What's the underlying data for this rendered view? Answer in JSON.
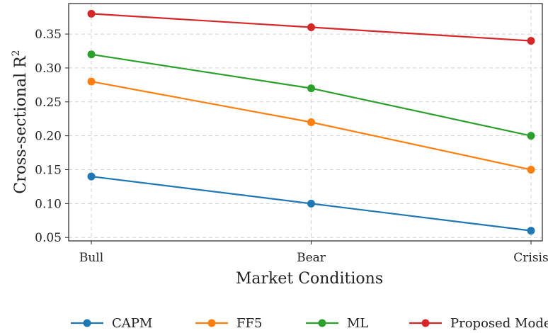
{
  "chart_data": {
    "type": "line",
    "xlabel": "Market Conditions",
    "ylabel": "Cross-sectional R",
    "ylabel_superscript": "2",
    "categories": [
      "Bull",
      "Bear",
      "Crisis"
    ],
    "ylim": [
      0.045,
      0.395
    ],
    "yticks": [
      "0.05",
      "0.10",
      "0.15",
      "0.20",
      "0.25",
      "0.30",
      "0.35"
    ],
    "grid": true,
    "legend_position": "bottom",
    "series": [
      {
        "name": "CAPM",
        "color": "#1f77b4",
        "values": [
          0.14,
          0.1,
          0.06
        ]
      },
      {
        "name": "FF5",
        "color": "#ff7f0e",
        "values": [
          0.28,
          0.22,
          0.15
        ]
      },
      {
        "name": "ML",
        "color": "#2ca02c",
        "values": [
          0.32,
          0.27,
          0.2
        ]
      },
      {
        "name": "Proposed Model",
        "color": "#d62728",
        "values": [
          0.38,
          0.36,
          0.34
        ]
      }
    ]
  }
}
